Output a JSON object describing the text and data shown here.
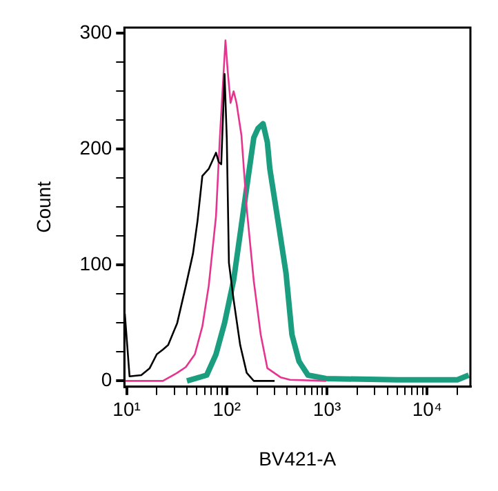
{
  "chart_data": {
    "type": "line",
    "xlabel": "BV421-A",
    "ylabel": "Count",
    "log": "x",
    "grid": false,
    "legend": false,
    "marker": "none",
    "line_style": "solid",
    "xlim": [
      9.5,
      27000
    ],
    "ylim": [
      -5,
      305
    ],
    "xticks": [
      {
        "value": 10,
        "label": "10¹"
      },
      {
        "value": 20,
        "label": null
      },
      {
        "value": 30,
        "label": null
      },
      {
        "value": 40,
        "label": null
      },
      {
        "value": 50,
        "label": null
      },
      {
        "value": 60,
        "label": null
      },
      {
        "value": 70,
        "label": null
      },
      {
        "value": 80,
        "label": null
      },
      {
        "value": 90,
        "label": null
      },
      {
        "value": 100,
        "label": "10²"
      },
      {
        "value": 200,
        "label": null
      },
      {
        "value": 300,
        "label": null
      },
      {
        "value": 400,
        "label": null
      },
      {
        "value": 500,
        "label": null
      },
      {
        "value": 600,
        "label": null
      },
      {
        "value": 700,
        "label": null
      },
      {
        "value": 800,
        "label": null
      },
      {
        "value": 900,
        "label": null
      },
      {
        "value": 1000,
        "label": "10³"
      },
      {
        "value": 2000,
        "label": null
      },
      {
        "value": 3000,
        "label": null
      },
      {
        "value": 4000,
        "label": null
      },
      {
        "value": 5000,
        "label": null
      },
      {
        "value": 6000,
        "label": null
      },
      {
        "value": 7000,
        "label": null
      },
      {
        "value": 8000,
        "label": null
      },
      {
        "value": 9000,
        "label": null
      },
      {
        "value": 10000,
        "label": "10⁴"
      },
      {
        "value": 20000,
        "label": null
      }
    ],
    "yticks": [
      0,
      {
        "value": 25,
        "label": null
      },
      {
        "value": 50,
        "label": null
      },
      {
        "value": 75,
        "label": null
      },
      100,
      {
        "value": 125,
        "label": null
      },
      {
        "value": 150,
        "label": null
      },
      {
        "value": 175,
        "label": null
      },
      200,
      {
        "value": 225,
        "label": null
      },
      {
        "value": 250,
        "label": null
      },
      {
        "value": 275,
        "label": null
      },
      300
    ],
    "series": [
      {
        "color": "#000000",
        "x": [
          9.6,
          10.7,
          14,
          17,
          20,
          23,
          26,
          32,
          39,
          46,
          51,
          57,
          66,
          78,
          83,
          88,
          95,
          100,
          105,
          117,
          136,
          158,
          186,
          300
        ],
        "values": [
          58,
          4,
          5,
          11,
          23,
          27,
          31,
          50,
          82,
          110,
          138,
          177,
          183,
          197,
          189,
          187,
          265,
          209,
          102,
          70,
          31,
          7,
          0,
          0
        ]
      },
      {
        "color": "#e6338f",
        "x": [
          9.6,
          23,
          32,
          39,
          48,
          57,
          66,
          78,
          85,
          92,
          97,
          102,
          109,
          117,
          125,
          140,
          158,
          186,
          218,
          254,
          346,
          427,
          980
        ],
        "values": [
          0,
          0,
          7,
          12,
          23,
          47,
          82,
          142,
          208,
          260,
          294,
          268,
          240,
          250,
          240,
          212,
          149,
          86,
          40,
          11,
          3,
          1,
          0
        ]
      },
      {
        "color": "#1a9e7f",
        "x": [
          40,
          44,
          63,
          78,
          95,
          117,
          136,
          158,
          186,
          205,
          230,
          254,
          269,
          330,
          390,
          447,
          525,
          646,
          980,
          5000,
          20000,
          26000
        ],
        "values": [
          0,
          1,
          5,
          23,
          50,
          87,
          127,
          167,
          210,
          218,
          222,
          206,
          183,
          134,
          93,
          40,
          17,
          5,
          2,
          1,
          1,
          5
        ]
      }
    ]
  }
}
